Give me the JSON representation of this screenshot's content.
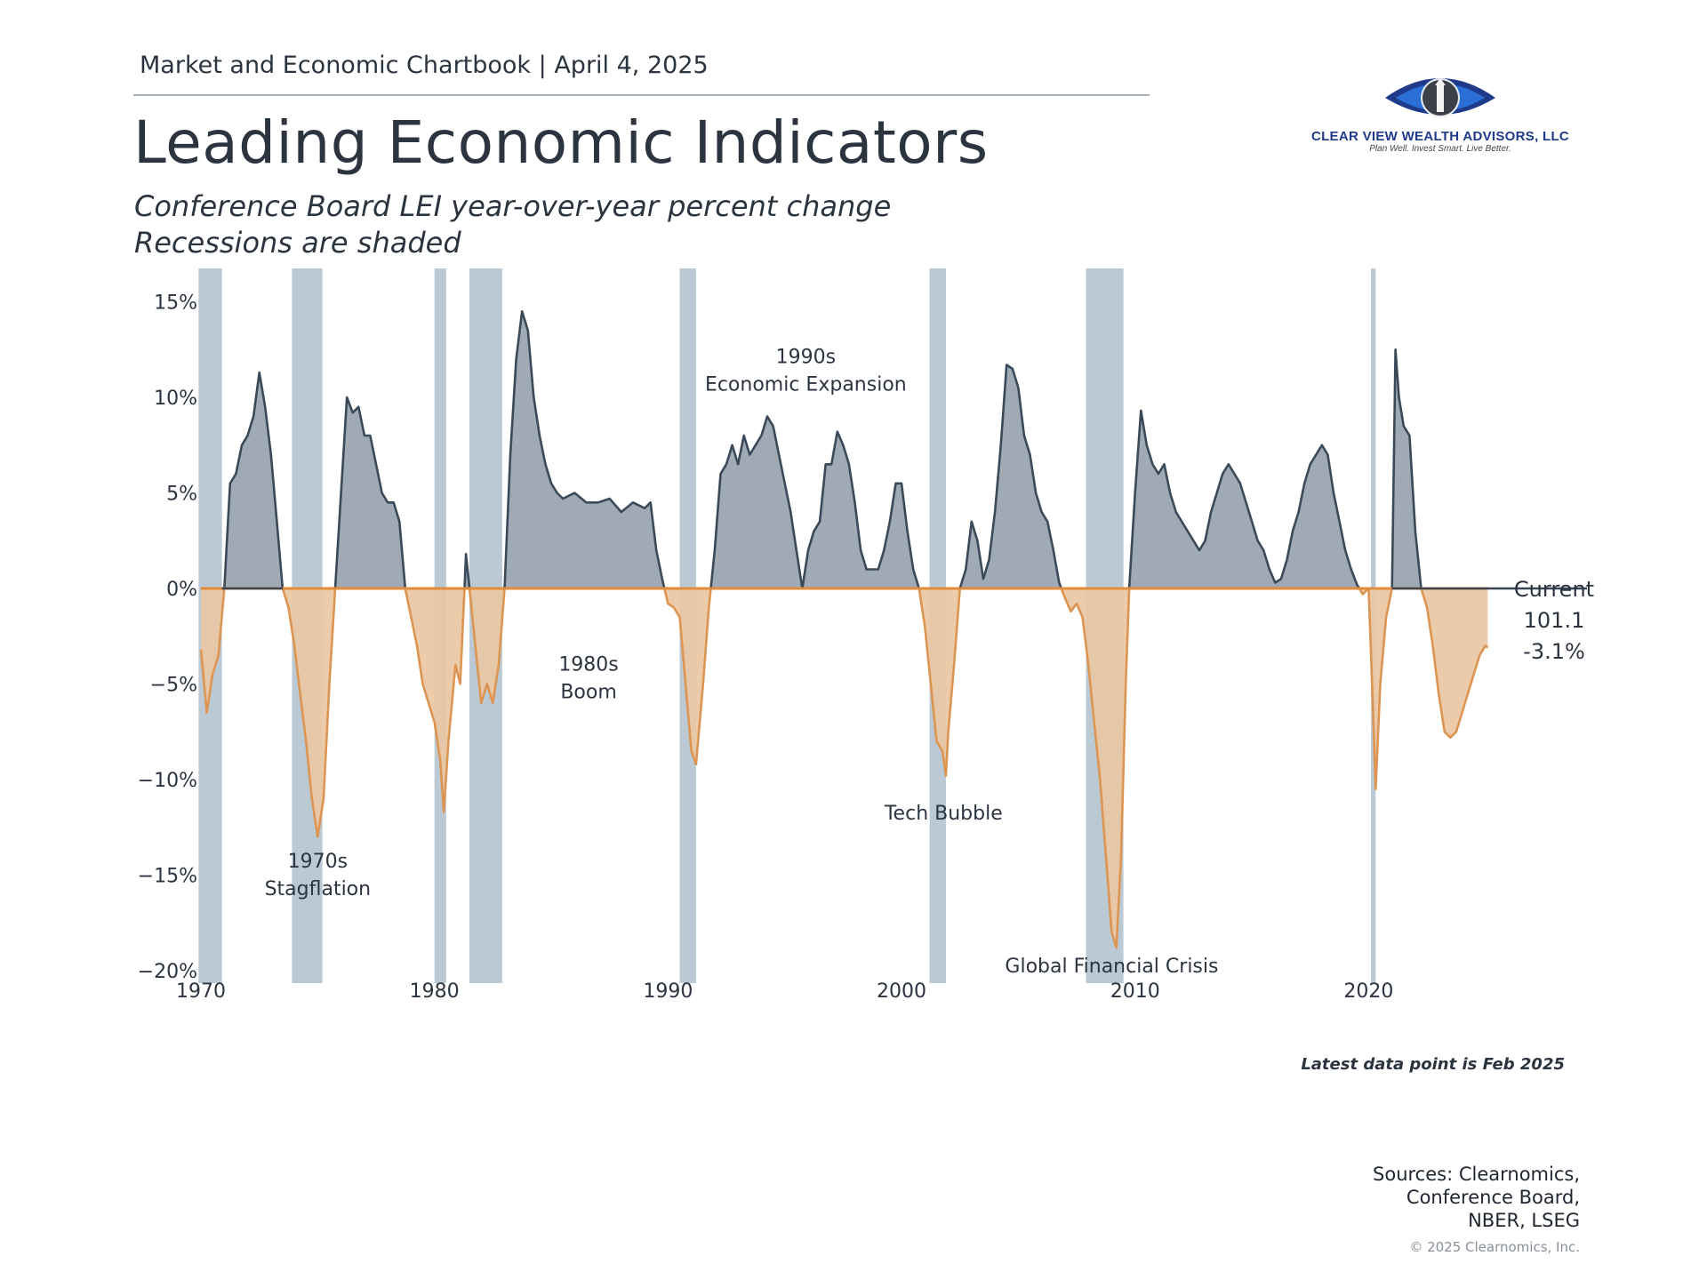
{
  "header": {
    "chartbook": "Market and Economic Chartbook | April 4, 2025",
    "title": "Leading Economic Indicators",
    "subtitle_1": "Conference Board LEI year-over-year percent change",
    "subtitle_2": "Recessions are shaded"
  },
  "logo": {
    "name": "CLEAR VIEW WEALTH ADVISORS, LLC",
    "tagline": "Plan Well. Invest Smart. Live Better.",
    "icon": "eye-lighthouse-logo",
    "colors": {
      "blue": "#1f3a8a",
      "bright": "#2b6fd6"
    }
  },
  "footer": {
    "latest": "Latest data point is Feb 2025",
    "sources": [
      "Sources: Clearnomics,",
      "Conference Board,",
      "NBER, LSEG"
    ],
    "copyright": "© 2025 Clearnomics, Inc."
  },
  "chart_data": {
    "type": "area",
    "series_name": "Conference Board LEI year-over-year percent change",
    "x_unit": "year",
    "y_unit": "percent",
    "xlim": [
      1970,
      2026
    ],
    "ylim": [
      -20,
      16
    ],
    "x_ticks": [
      1970,
      1980,
      1990,
      2000,
      2010,
      2020
    ],
    "x_tick_labels": [
      "1970",
      "1980",
      "1990",
      "2000",
      "2010",
      "2020"
    ],
    "y_ticks": [
      15,
      10,
      5,
      0,
      -5,
      -10,
      -15,
      -20
    ],
    "y_tick_labels": [
      "15%",
      "10%",
      "5%",
      "0%",
      "−5%",
      "−10%",
      "−15%",
      "−20%"
    ],
    "colors": {
      "positive_fill": "#97a3ae",
      "positive_line": "#3b4a59",
      "negative_fill": "#e9c7a3",
      "negative_line": "#dc9552",
      "zero_line_left": "#e28c3a",
      "zero_line_right": "#3a4452",
      "recession": "#a9bcc8"
    },
    "recessions": [
      [
        1969.9,
        1970.9
      ],
      [
        1973.9,
        1975.2
      ],
      [
        1980.0,
        1980.5
      ],
      [
        1981.5,
        1982.9
      ],
      [
        1990.5,
        1991.2
      ],
      [
        2001.2,
        2001.9
      ],
      [
        2007.9,
        2009.5
      ],
      [
        2020.1,
        2020.3
      ]
    ],
    "points": [
      [
        1970.0,
        -3.2
      ],
      [
        1970.25,
        -6.5
      ],
      [
        1970.5,
        -4.5
      ],
      [
        1970.75,
        -3.5
      ],
      [
        1971.0,
        0.0
      ],
      [
        1971.25,
        5.5
      ],
      [
        1971.5,
        6.0
      ],
      [
        1971.75,
        7.5
      ],
      [
        1972.0,
        8.0
      ],
      [
        1972.25,
        9.0
      ],
      [
        1972.5,
        11.3
      ],
      [
        1972.75,
        9.5
      ],
      [
        1973.0,
        7.0
      ],
      [
        1973.25,
        3.5
      ],
      [
        1973.5,
        0.0
      ],
      [
        1973.75,
        -1.0
      ],
      [
        1974.0,
        -3.0
      ],
      [
        1974.25,
        -5.5
      ],
      [
        1974.5,
        -8.0
      ],
      [
        1974.75,
        -11.0
      ],
      [
        1975.0,
        -13.0
      ],
      [
        1975.25,
        -11.0
      ],
      [
        1975.5,
        -5.0
      ],
      [
        1975.75,
        0.0
      ],
      [
        1976.0,
        5.0
      ],
      [
        1976.25,
        10.0
      ],
      [
        1976.5,
        9.2
      ],
      [
        1976.75,
        9.5
      ],
      [
        1977.0,
        8.0
      ],
      [
        1977.25,
        8.0
      ],
      [
        1977.5,
        6.5
      ],
      [
        1977.75,
        5.0
      ],
      [
        1978.0,
        4.5
      ],
      [
        1978.25,
        4.5
      ],
      [
        1978.5,
        3.5
      ],
      [
        1978.75,
        0.0
      ],
      [
        1979.0,
        -1.5
      ],
      [
        1979.25,
        -3.0
      ],
      [
        1979.5,
        -5.0
      ],
      [
        1979.75,
        -6.0
      ],
      [
        1980.0,
        -7.0
      ],
      [
        1980.25,
        -9.0
      ],
      [
        1980.4,
        -11.7
      ],
      [
        1980.6,
        -8.0
      ],
      [
        1980.9,
        -4.0
      ],
      [
        1981.1,
        -5.0
      ],
      [
        1981.25,
        -1.0
      ],
      [
        1981.35,
        1.8
      ],
      [
        1981.5,
        0.0
      ],
      [
        1981.75,
        -3.0
      ],
      [
        1982.0,
        -6.0
      ],
      [
        1982.25,
        -5.0
      ],
      [
        1982.5,
        -6.0
      ],
      [
        1982.75,
        -4.0
      ],
      [
        1983.0,
        0.0
      ],
      [
        1983.25,
        7.0
      ],
      [
        1983.5,
        12.0
      ],
      [
        1983.75,
        14.5
      ],
      [
        1984.0,
        13.5
      ],
      [
        1984.25,
        10.0
      ],
      [
        1984.5,
        8.0
      ],
      [
        1984.75,
        6.5
      ],
      [
        1985.0,
        5.5
      ],
      [
        1985.25,
        5.0
      ],
      [
        1985.5,
        4.7
      ],
      [
        1986.0,
        5.0
      ],
      [
        1986.5,
        4.5
      ],
      [
        1987.0,
        4.5
      ],
      [
        1987.5,
        4.7
      ],
      [
        1988.0,
        4.0
      ],
      [
        1988.5,
        4.5
      ],
      [
        1989.0,
        4.2
      ],
      [
        1989.25,
        4.5
      ],
      [
        1989.5,
        2.0
      ],
      [
        1989.75,
        0.5
      ],
      [
        1990.0,
        -0.8
      ],
      [
        1990.25,
        -1.0
      ],
      [
        1990.5,
        -1.5
      ],
      [
        1990.75,
        -5.0
      ],
      [
        1991.0,
        -8.5
      ],
      [
        1991.2,
        -9.2
      ],
      [
        1991.5,
        -5.0
      ],
      [
        1991.75,
        -1.0
      ],
      [
        1992.0,
        2.0
      ],
      [
        1992.25,
        6.0
      ],
      [
        1992.5,
        6.5
      ],
      [
        1992.75,
        7.5
      ],
      [
        1993.0,
        6.5
      ],
      [
        1993.25,
        8.0
      ],
      [
        1993.5,
        7.0
      ],
      [
        1994.0,
        8.0
      ],
      [
        1994.25,
        9.0
      ],
      [
        1994.5,
        8.5
      ],
      [
        1994.75,
        7.0
      ],
      [
        1995.0,
        5.5
      ],
      [
        1995.25,
        4.0
      ],
      [
        1995.5,
        2.0
      ],
      [
        1995.75,
        0.0
      ],
      [
        1996.0,
        2.0
      ],
      [
        1996.25,
        3.0
      ],
      [
        1996.5,
        3.5
      ],
      [
        1996.75,
        6.5
      ],
      [
        1997.0,
        6.5
      ],
      [
        1997.25,
        8.2
      ],
      [
        1997.5,
        7.5
      ],
      [
        1997.75,
        6.5
      ],
      [
        1998.0,
        4.5
      ],
      [
        1998.25,
        2.0
      ],
      [
        1998.5,
        1.0
      ],
      [
        1999.0,
        1.0
      ],
      [
        1999.25,
        2.0
      ],
      [
        1999.5,
        3.5
      ],
      [
        1999.75,
        5.5
      ],
      [
        2000.0,
        5.5
      ],
      [
        2000.25,
        3.0
      ],
      [
        2000.5,
        1.0
      ],
      [
        2000.75,
        0.0
      ],
      [
        2001.0,
        -2.0
      ],
      [
        2001.25,
        -5.0
      ],
      [
        2001.5,
        -8.0
      ],
      [
        2001.75,
        -8.5
      ],
      [
        2001.9,
        -9.8
      ],
      [
        2002.0,
        -7.5
      ],
      [
        2002.25,
        -4.0
      ],
      [
        2002.5,
        0.0
      ],
      [
        2002.75,
        1.0
      ],
      [
        2003.0,
        3.5
      ],
      [
        2003.25,
        2.5
      ],
      [
        2003.5,
        0.5
      ],
      [
        2003.75,
        1.5
      ],
      [
        2004.0,
        4.0
      ],
      [
        2004.25,
        7.5
      ],
      [
        2004.5,
        11.7
      ],
      [
        2004.75,
        11.5
      ],
      [
        2005.0,
        10.5
      ],
      [
        2005.25,
        8.0
      ],
      [
        2005.5,
        7.0
      ],
      [
        2005.75,
        5.0
      ],
      [
        2006.0,
        4.0
      ],
      [
        2006.25,
        3.5
      ],
      [
        2006.5,
        2.0
      ],
      [
        2006.75,
        0.3
      ],
      [
        2007.0,
        -0.5
      ],
      [
        2007.25,
        -1.2
      ],
      [
        2007.5,
        -0.8
      ],
      [
        2007.75,
        -1.5
      ],
      [
        2008.0,
        -4.0
      ],
      [
        2008.25,
        -7.0
      ],
      [
        2008.5,
        -10.0
      ],
      [
        2008.75,
        -14.0
      ],
      [
        2009.0,
        -18.0
      ],
      [
        2009.2,
        -18.8
      ],
      [
        2009.4,
        -14.0
      ],
      [
        2009.6,
        -5.0
      ],
      [
        2009.75,
        0.0
      ],
      [
        2010.0,
        5.0
      ],
      [
        2010.25,
        9.3
      ],
      [
        2010.5,
        7.5
      ],
      [
        2010.75,
        6.5
      ],
      [
        2011.0,
        6.0
      ],
      [
        2011.25,
        6.5
      ],
      [
        2011.5,
        5.0
      ],
      [
        2011.75,
        4.0
      ],
      [
        2012.0,
        3.5
      ],
      [
        2012.25,
        3.0
      ],
      [
        2012.5,
        2.5
      ],
      [
        2012.75,
        2.0
      ],
      [
        2013.0,
        2.5
      ],
      [
        2013.25,
        4.0
      ],
      [
        2013.5,
        5.0
      ],
      [
        2013.75,
        6.0
      ],
      [
        2014.0,
        6.5
      ],
      [
        2014.25,
        6.0
      ],
      [
        2014.5,
        5.5
      ],
      [
        2014.75,
        4.5
      ],
      [
        2015.0,
        3.5
      ],
      [
        2015.25,
        2.5
      ],
      [
        2015.5,
        2.0
      ],
      [
        2015.75,
        1.0
      ],
      [
        2016.0,
        0.3
      ],
      [
        2016.25,
        0.5
      ],
      [
        2016.5,
        1.5
      ],
      [
        2016.75,
        3.0
      ],
      [
        2017.0,
        4.0
      ],
      [
        2017.25,
        5.5
      ],
      [
        2017.5,
        6.5
      ],
      [
        2017.75,
        7.0
      ],
      [
        2018.0,
        7.5
      ],
      [
        2018.25,
        7.0
      ],
      [
        2018.5,
        5.0
      ],
      [
        2018.75,
        3.5
      ],
      [
        2019.0,
        2.0
      ],
      [
        2019.25,
        1.0
      ],
      [
        2019.5,
        0.2
      ],
      [
        2019.75,
        -0.3
      ],
      [
        2020.0,
        0.0
      ],
      [
        2020.15,
        -5.0
      ],
      [
        2020.3,
        -10.5
      ],
      [
        2020.5,
        -5.0
      ],
      [
        2020.75,
        -1.5
      ],
      [
        2021.0,
        0.0
      ],
      [
        2021.15,
        12.5
      ],
      [
        2021.3,
        10.0
      ],
      [
        2021.5,
        8.5
      ],
      [
        2021.75,
        8.0
      ],
      [
        2022.0,
        3.0
      ],
      [
        2022.25,
        0.0
      ],
      [
        2022.5,
        -1.0
      ],
      [
        2022.75,
        -3.0
      ],
      [
        2023.0,
        -5.5
      ],
      [
        2023.25,
        -7.5
      ],
      [
        2023.5,
        -7.8
      ],
      [
        2023.75,
        -7.5
      ],
      [
        2024.0,
        -6.5
      ],
      [
        2024.25,
        -5.5
      ],
      [
        2024.5,
        -4.5
      ],
      [
        2024.75,
        -3.5
      ],
      [
        2025.0,
        -3.0
      ],
      [
        2025.1,
        -3.1
      ]
    ],
    "annotations": [
      {
        "text": [
          "1970s",
          "Stagflation"
        ],
        "x": 1975.0,
        "y": -14.6
      },
      {
        "text": [
          "1980s",
          "Boom"
        ],
        "x": 1986.6,
        "y": -4.3
      },
      {
        "text": [
          "1990s",
          "Economic Expansion"
        ],
        "x": 1995.9,
        "y": 11.8
      },
      {
        "text": [
          "Tech Bubble"
        ],
        "x": 2001.8,
        "y": -12.1
      },
      {
        "text": [
          "Global Financial Crisis"
        ],
        "x": 2009.0,
        "y": -20.1
      }
    ],
    "current": {
      "label": "Current",
      "value": "101.1",
      "change": "-3.1%"
    }
  }
}
